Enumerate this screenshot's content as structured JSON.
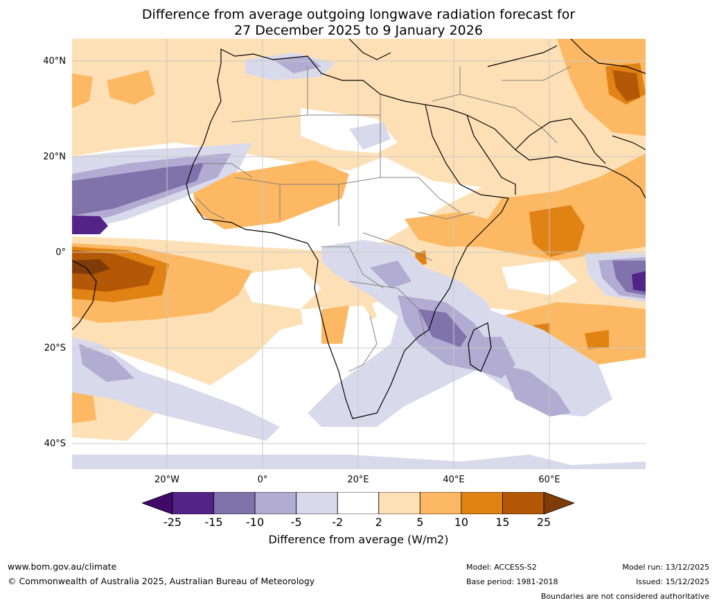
{
  "title_line1": "Difference from average outgoing longwave radiation forecast for",
  "title_line2": "27 December 2025 to 9 January 2026",
  "lat_labels": [
    "40°N",
    "20°N",
    "0°",
    "20°S",
    "40°S"
  ],
  "lon_labels": [
    "20°W",
    "0°",
    "20°E",
    "40°E",
    "60°E"
  ],
  "colorbar": {
    "ticks": [
      "-25",
      "-15",
      "-10",
      "-5",
      "-2",
      "2",
      "5",
      "10",
      "15",
      "25"
    ],
    "colors": [
      "#3f0a6a",
      "#542388",
      "#8073ac",
      "#b2abd2",
      "#d8daeb",
      "#ffffff",
      "#fee0b6",
      "#fdb863",
      "#e08214",
      "#b35806",
      "#7f3b08"
    ],
    "label": "Difference from average (W/m2)"
  },
  "footer": {
    "website": "www.bom.gov.au/climate",
    "copyright": "© Commonwealth of Australia 2025, Australian Bureau of Meteorology",
    "model": "Model: ACCESS-S2",
    "base_period": "Base period: 1981-2018",
    "model_run": "Model run: 13/12/2025",
    "issued": "Issued: 15/12/2025",
    "disclaimer": "Boundaries are not considered authoritative"
  }
}
